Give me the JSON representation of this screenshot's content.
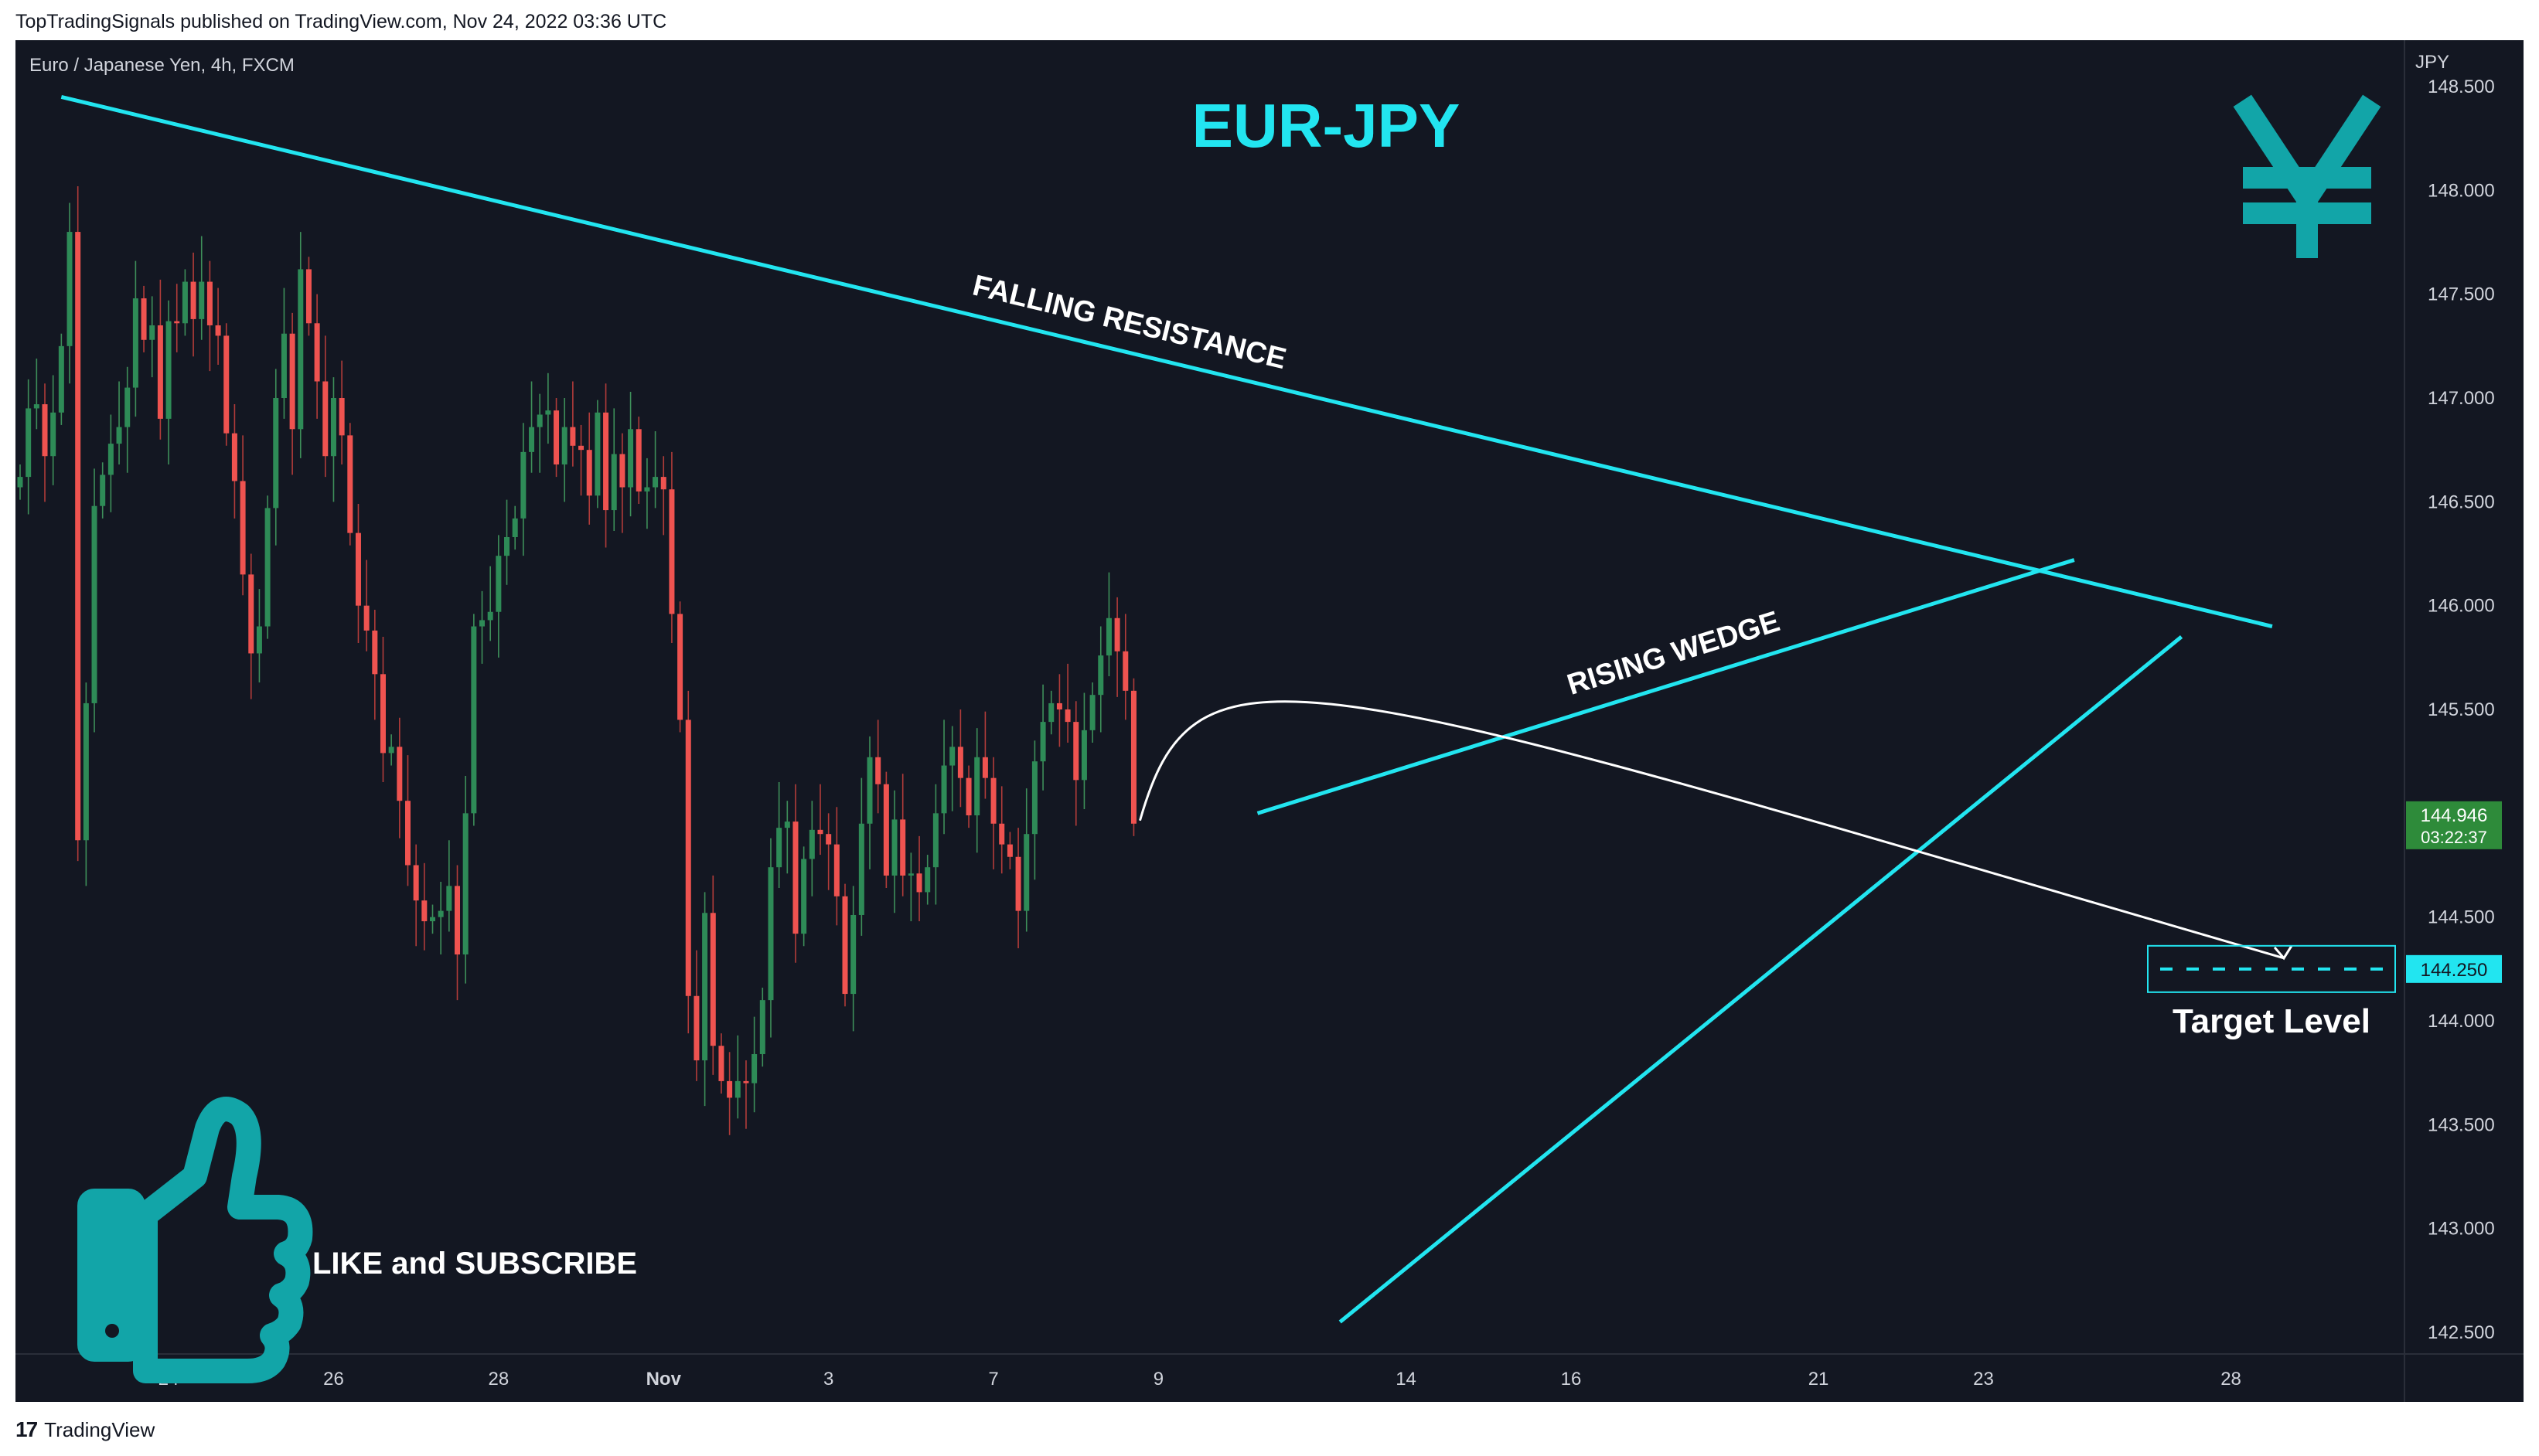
{
  "header": {
    "published_line": "TopTradingSignals published on TradingView.com, Nov 24, 2022 03:36 UTC"
  },
  "footer": {
    "logo_mark": "17",
    "brand": "TradingView"
  },
  "colors": {
    "background": "#131722",
    "up": "#26a69a",
    "up_body": "#2e8b57",
    "down": "#ef5350",
    "cyan": "#22e5f0",
    "teal_icon": "#12a5a8"
  },
  "chart_data": {
    "type": "candlestick",
    "symbol_label": "Euro / Japanese Yen, 4h, FXCM",
    "title": "EUR-JPY",
    "currency": "JPY",
    "ylim": [
      142.35,
      148.75
    ],
    "y_ticks": [
      "148.500",
      "148.000",
      "147.500",
      "147.000",
      "146.500",
      "146.000",
      "145.500",
      "145.000",
      "144.500",
      "144.000",
      "143.500",
      "143.000",
      "142.500"
    ],
    "x_ticks": [
      {
        "label": "24",
        "bar": 18
      },
      {
        "label": "26",
        "bar": 38
      },
      {
        "label": "28",
        "bar": 58
      },
      {
        "label": "Nov",
        "bar": 78
      },
      {
        "label": "3",
        "bar": 98
      },
      {
        "label": "7",
        "bar": 118
      },
      {
        "label": "9",
        "bar": 138
      },
      {
        "label": "14",
        "bar": 168
      },
      {
        "label": "16",
        "bar": 188
      },
      {
        "label": "21",
        "bar": 218
      },
      {
        "label": "23",
        "bar": 238
      },
      {
        "label": "28",
        "bar": 268
      }
    ],
    "last_price": {
      "value": "144.946",
      "countdown": "03:22:37"
    },
    "target": {
      "value": "144.250",
      "label": "Target Level"
    },
    "annotations": {
      "falling_resistance": "FALLING RESISTANCE",
      "rising_wedge": "RISING WEDGE",
      "cta": "LIKE and SUBSCRIBE"
    },
    "trendlines": [
      {
        "name": "falling-resistance",
        "from": [
          5,
          148.45
        ],
        "to": [
          273,
          145.9
        ]
      },
      {
        "name": "wedge-upper",
        "from": [
          150,
          145.0
        ],
        "to": [
          249,
          146.22
        ]
      },
      {
        "name": "wedge-lower",
        "from": [
          160,
          142.55
        ],
        "to": [
          262,
          145.85
        ]
      }
    ],
    "closes": [
      146.62,
      146.95,
      146.97,
      146.72,
      146.93,
      147.25,
      147.8,
      144.87,
      145.53,
      146.48,
      146.63,
      146.78,
      146.86,
      147.05,
      147.48,
      147.28,
      147.35,
      146.9,
      147.37,
      147.36,
      147.56,
      147.38,
      147.56,
      147.35,
      147.3,
      146.83,
      146.6,
      146.15,
      145.77,
      145.9,
      146.47,
      147.0,
      147.31,
      146.85,
      147.62,
      147.36,
      147.08,
      146.72,
      147.0,
      146.82,
      146.35,
      146.0,
      145.88,
      145.67,
      145.29,
      145.32,
      145.06,
      144.75,
      144.58,
      144.48,
      144.5,
      144.53,
      144.65,
      144.32,
      145.0,
      145.9,
      145.93,
      145.97,
      146.24,
      146.33,
      146.42,
      146.74,
      146.86,
      146.92,
      146.94,
      146.68,
      146.86,
      146.77,
      146.75,
      146.53,
      146.93,
      146.46,
      146.73,
      146.57,
      146.85,
      146.55,
      146.57,
      146.62,
      146.56,
      145.96,
      145.45,
      144.12,
      143.81,
      144.52,
      143.88,
      143.71,
      143.63,
      143.71,
      143.7,
      143.84,
      144.1,
      144.74,
      144.93,
      144.96,
      144.42,
      144.78,
      144.92,
      144.9,
      144.85,
      144.6,
      144.13,
      144.51,
      144.95,
      145.27,
      145.14,
      144.7,
      144.97,
      144.7,
      144.71,
      144.62,
      144.74,
      145.0,
      145.23,
      145.32,
      145.17,
      144.99,
      145.27,
      145.17,
      144.95,
      144.85,
      144.79,
      144.53,
      144.9,
      145.25,
      145.44,
      145.53,
      145.5,
      145.44,
      145.16,
      145.4,
      145.57,
      145.76,
      145.94,
      145.78,
      145.59,
      144.95
    ]
  }
}
